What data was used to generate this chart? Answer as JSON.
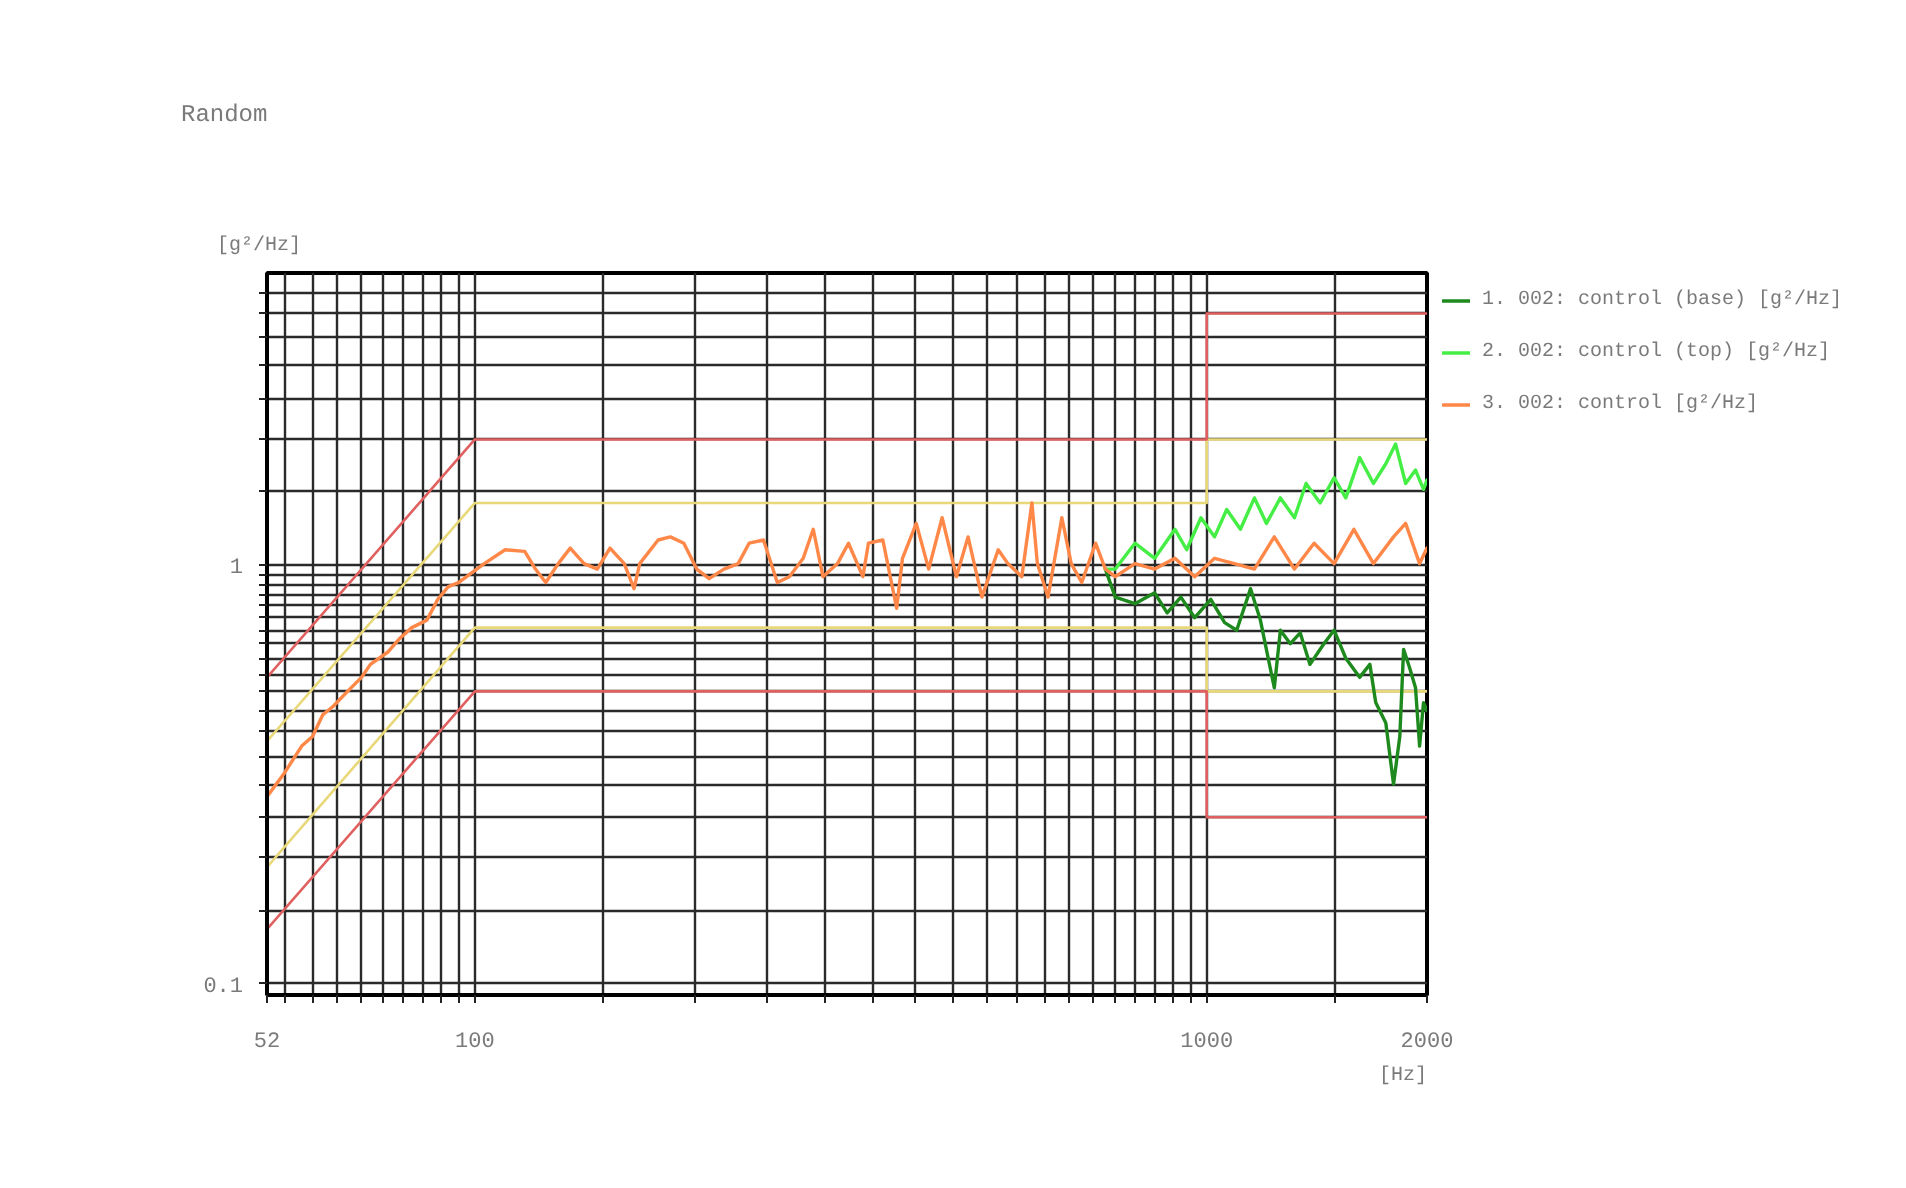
{
  "chart_data": {
    "type": "line",
    "title": "Random",
    "ylabel": "[g²/Hz]",
    "xlabel": "[Hz]",
    "log": "xy",
    "xlim": [
      52,
      2000
    ],
    "ylim": [
      0.094,
      5
    ],
    "xticks": [
      52,
      {
        "value": 55,
        "label": null
      },
      {
        "value": 60,
        "label": null
      },
      {
        "value": 65,
        "label": null
      },
      {
        "value": 70,
        "label": null
      },
      {
        "value": 75,
        "label": null
      },
      {
        "value": 80,
        "label": null
      },
      {
        "value": 85,
        "label": null
      },
      {
        "value": 90,
        "label": null
      },
      {
        "value": 95,
        "label": null
      },
      100,
      {
        "value": 150,
        "label": null
      },
      {
        "value": 200,
        "label": null
      },
      {
        "value": 250,
        "label": null
      },
      {
        "value": 300,
        "label": null
      },
      {
        "value": 350,
        "label": null
      },
      {
        "value": 400,
        "label": null
      },
      {
        "value": 450,
        "label": null
      },
      {
        "value": 500,
        "label": null
      },
      {
        "value": 550,
        "label": null
      },
      {
        "value": 600,
        "label": null
      },
      {
        "value": 650,
        "label": null
      },
      {
        "value": 700,
        "label": null
      },
      {
        "value": 750,
        "label": null
      },
      {
        "value": 800,
        "label": null
      },
      {
        "value": 850,
        "label": null
      },
      {
        "value": 900,
        "label": null
      },
      {
        "value": 950,
        "label": null
      },
      1000,
      {
        "value": 1500,
        "label": null
      },
      2000
    ],
    "yticks": [
      0.1,
      {
        "value": 0.15,
        "label": null
      },
      {
        "value": 0.2,
        "label": null
      },
      {
        "value": 0.25,
        "label": null
      },
      {
        "value": 0.3,
        "label": null
      },
      {
        "value": 0.35,
        "label": null
      },
      {
        "value": 0.4,
        "label": null
      },
      {
        "value": 0.45,
        "label": null
      },
      {
        "value": 0.5,
        "label": null
      },
      {
        "value": 0.55,
        "label": null
      },
      {
        "value": 0.6,
        "label": null
      },
      {
        "value": 0.65,
        "label": null
      },
      {
        "value": 0.7,
        "label": null
      },
      {
        "value": 0.75,
        "label": null
      },
      {
        "value": 0.8,
        "label": null
      },
      {
        "value": 0.85,
        "label": null
      },
      {
        "value": 0.9,
        "label": null
      },
      {
        "value": 0.95,
        "label": null
      },
      1,
      {
        "value": 1.5,
        "label": null
      },
      {
        "value": 2,
        "label": null
      },
      {
        "value": 2.5,
        "label": null
      },
      {
        "value": 3,
        "label": null
      },
      {
        "value": 3.5,
        "label": null
      },
      {
        "value": 4,
        "label": null
      },
      {
        "value": 4.5,
        "label": null
      }
    ],
    "grid": true,
    "legend": "right",
    "series": [
      {
        "color": "#e8d878",
        "x": [
          52,
          100,
          1000,
          1000,
          2000
        ],
        "values": [
          0.38,
          1.41,
          1.41,
          2,
          2
        ]
      },
      {
        "color": "#e8d878",
        "x": [
          52,
          100,
          1000,
          1000,
          2000
        ],
        "values": [
          0.19,
          0.71,
          0.71,
          0.5,
          0.5
        ]
      },
      {
        "color": "#e06060",
        "x": [
          52,
          100,
          1000,
          1000,
          2000
        ],
        "values": [
          0.54,
          2,
          2,
          4,
          4
        ]
      },
      {
        "color": "#e06060",
        "x": [
          52,
          100,
          1000,
          1000,
          2000
        ],
        "values": [
          0.135,
          0.5,
          0.5,
          0.25,
          0.25
        ]
      },
      {
        "name": "1. 002: control (base) [g²/Hz]",
        "color": "#1e8a1e",
        "x": [
          727,
          750,
          798,
          849,
          883,
          922,
          963,
          1013,
          1058,
          1099,
          1148,
          1184,
          1237,
          1261,
          1301,
          1342,
          1384,
          1446,
          1493,
          1549,
          1618,
          1671,
          1702,
          1757,
          1800,
          1836,
          1858,
          1893,
          1929,
          1954,
          1978,
          2000
        ],
        "values": [
          0.98,
          0.84,
          0.81,
          0.86,
          0.77,
          0.84,
          0.75,
          0.83,
          0.73,
          0.7,
          0.88,
          0.74,
          0.51,
          0.7,
          0.65,
          0.69,
          0.58,
          0.65,
          0.7,
          0.6,
          0.54,
          0.58,
          0.47,
          0.42,
          0.3,
          0.39,
          0.63,
          0.57,
          0.51,
          0.37,
          0.47,
          0.45
        ]
      },
      {
        "name": "2. 002: control (top) [g²/Hz]",
        "color": "#44ee44",
        "x": [
          727,
          750,
          798,
          849,
          905,
          939,
          982,
          1025,
          1065,
          1112,
          1162,
          1207,
          1261,
          1318,
          1367,
          1429,
          1493,
          1549,
          1618,
          1690,
          1757,
          1812,
          1870,
          1929,
          1978,
          2000
        ],
        "values": [
          0.98,
          0.98,
          1.13,
          1.04,
          1.22,
          1.09,
          1.3,
          1.17,
          1.36,
          1.22,
          1.45,
          1.26,
          1.45,
          1.3,
          1.57,
          1.41,
          1.62,
          1.45,
          1.81,
          1.57,
          1.75,
          1.95,
          1.57,
          1.69,
          1.52,
          1.6
        ]
      },
      {
        "name": "3. 002: control [g²/Hz]",
        "color": "#ff8848",
        "x": [
          52,
          55,
          58,
          60,
          62,
          64,
          67,
          70,
          72,
          76,
          79,
          82,
          86,
          89,
          92,
          95,
          99,
          103,
          110,
          117,
          121,
          125,
          130,
          135,
          141,
          147,
          153,
          160,
          165,
          168,
          178,
          185,
          193,
          201,
          209,
          219,
          229,
          237,
          248,
          259,
          269,
          281,
          290,
          299,
          313,
          324,
          339,
          345,
          361,
          377,
          384,
          401,
          417,
          435,
          455,
          472,
          493,
          519,
          535,
          559,
          577,
          587,
          607,
          634,
          653,
          675,
          705,
          727,
          750,
          798,
          849,
          905,
          963,
          1025,
          1091,
          1162,
          1237,
          1318,
          1402,
          1493,
          1589,
          1690,
          1800,
          1870,
          1954,
          2000
        ],
        "values": [
          0.28,
          0.32,
          0.37,
          0.39,
          0.44,
          0.46,
          0.5,
          0.54,
          0.58,
          0.62,
          0.67,
          0.71,
          0.74,
          0.83,
          0.89,
          0.91,
          0.96,
          1.01,
          1.09,
          1.08,
          0.98,
          0.91,
          1.01,
          1.1,
          1.01,
          0.98,
          1.1,
          1.01,
          0.88,
          1.01,
          1.15,
          1.17,
          1.13,
          0.98,
          0.93,
          0.98,
          1.01,
          1.13,
          1.15,
          0.91,
          0.94,
          1.04,
          1.22,
          0.94,
          1.01,
          1.13,
          0.94,
          1.13,
          1.15,
          0.79,
          1.04,
          1.26,
          0.98,
          1.3,
          0.94,
          1.17,
          0.84,
          1.09,
          1.01,
          0.94,
          1.41,
          1.01,
          0.84,
          1.3,
          1.01,
          0.91,
          1.13,
          0.98,
          0.94,
          1.01,
          0.98,
          1.04,
          0.94,
          1.04,
          1.01,
          0.98,
          1.17,
          0.98,
          1.13,
          1.01,
          1.22,
          1.01,
          1.17,
          1.26,
          1.01,
          1.1
        ]
      }
    ]
  }
}
